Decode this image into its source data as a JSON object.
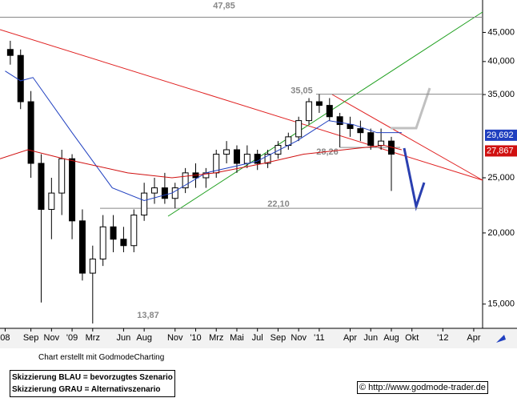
{
  "chart_data": {
    "type": "candlestick",
    "log_scale": true,
    "xlim": [
      5,
      51.86
    ],
    "ylim": [
      13600,
      51300
    ],
    "xticks": [
      {
        "value": 5.5,
        "label": "08"
      },
      {
        "value": 8,
        "label": "Sep"
      },
      {
        "value": 10,
        "label": "Nov"
      },
      {
        "value": 12,
        "label": "'09"
      },
      {
        "value": 14,
        "label": "Mrz"
      },
      {
        "value": 17,
        "label": "Jun"
      },
      {
        "value": 19,
        "label": "Aug"
      },
      {
        "value": 22,
        "label": "Nov"
      },
      {
        "value": 24,
        "label": "'10"
      },
      {
        "value": 26,
        "label": "Mrz"
      },
      {
        "value": 28,
        "label": "Mai"
      },
      {
        "value": 30,
        "label": "Jul"
      },
      {
        "value": 32,
        "label": "Sep"
      },
      {
        "value": 34,
        "label": "Nov"
      },
      {
        "value": 36,
        "label": "'11"
      },
      {
        "value": 39,
        "label": "Apr"
      },
      {
        "value": 41,
        "label": "Jun"
      },
      {
        "value": 43,
        "label": "Aug"
      },
      {
        "value": 45,
        "label": "Okt"
      },
      {
        "value": 48,
        "label": "'12"
      },
      {
        "value": 51,
        "label": "Apr"
      }
    ],
    "yticks": [
      {
        "value": 15000,
        "label": "15,000"
      },
      {
        "value": 20000,
        "label": "20,000"
      },
      {
        "value": 25000,
        "label": "25,000"
      },
      {
        "value": 35000,
        "label": "35,000"
      },
      {
        "value": 40000,
        "label": "40,000"
      },
      {
        "value": 45000,
        "label": "45,000"
      }
    ],
    "x": [
      6,
      7,
      8,
      9,
      10,
      11,
      12,
      13,
      14,
      15,
      16,
      17,
      18,
      19,
      20,
      21,
      22,
      23,
      24,
      25,
      26,
      27,
      28,
      29,
      30,
      31,
      32,
      33,
      34,
      35,
      36,
      37,
      38,
      39,
      40,
      41,
      42,
      43
    ],
    "open": [
      42000,
      41000,
      34000,
      26500,
      22000,
      23500,
      27000,
      21000,
      17000,
      18000,
      20500,
      19500,
      19000,
      21500,
      23500,
      24000,
      23000,
      24000,
      25500,
      25000,
      25500,
      27500,
      28000,
      26500,
      27500,
      26500,
      27500,
      28500,
      29500,
      31500,
      34000,
      33500,
      32000,
      31000,
      30500,
      30000,
      28500,
      29000
    ],
    "high": [
      43500,
      42000,
      35500,
      27500,
      25000,
      28000,
      27500,
      22000,
      19000,
      21500,
      21500,
      20500,
      22000,
      24500,
      25000,
      25500,
      24500,
      26000,
      26500,
      26000,
      28000,
      29000,
      28500,
      28500,
      28000,
      28000,
      29000,
      30000,
      32000,
      34500,
      35050,
      34500,
      32500,
      32000,
      31500,
      30500,
      30500,
      29500
    ],
    "low": [
      39500,
      33000,
      25000,
      15100,
      19500,
      21500,
      19500,
      16500,
      13870,
      17500,
      18500,
      18500,
      18500,
      21000,
      22500,
      22500,
      22100,
      23500,
      24000,
      24000,
      25000,
      26500,
      25500,
      26000,
      25800,
      26000,
      27000,
      28000,
      29000,
      31000,
      32500,
      31500,
      28260,
      29500,
      29000,
      28000,
      28000,
      23700
    ],
    "close": [
      41000,
      34000,
      26500,
      22000,
      23500,
      27000,
      21000,
      17000,
      18000,
      20500,
      19500,
      19000,
      21500,
      23500,
      24000,
      23000,
      24000,
      25500,
      25000,
      25500,
      27500,
      28000,
      26500,
      27500,
      26500,
      27500,
      28500,
      29500,
      31500,
      34000,
      33500,
      32000,
      31000,
      30500,
      30000,
      28500,
      29000,
      27500
    ],
    "candle_color": "#000000",
    "series": [
      {
        "color": "#2040c0",
        "x": [
          5.5,
          7,
          8.2,
          12,
          15.9,
          19,
          21.7,
          25,
          29.9,
          33.8,
          36.9,
          39.3,
          41.6,
          44
        ],
        "values": [
          38500,
          37000,
          37500,
          30000,
          24000,
          22800,
          23500,
          25500,
          26700,
          29000,
          31500,
          31000,
          30000,
          30000
        ]
      },
      {
        "color": "#d01010",
        "x": [
          5,
          7.7,
          11.2,
          17.4,
          21.7,
          25.9,
          30.6,
          34.5,
          38.4,
          42.3,
          44
        ],
        "values": [
          27000,
          28000,
          27000,
          25500,
          25000,
          25500,
          26500,
          27500,
          28000,
          28500,
          28000
        ]
      }
    ],
    "levels": [
      {
        "value": 47850,
        "label": "47,85"
      },
      {
        "value": 35050,
        "label": "35,05"
      },
      {
        "value": 28260,
        "label": "28,26"
      },
      {
        "value": 22100,
        "label": "22,10"
      },
      {
        "value": 13870,
        "label": "13,87"
      }
    ],
    "price_labels": [
      {
        "value": 29692,
        "label": "29,692",
        "color": "#1f3fbf"
      },
      {
        "value": 27867,
        "label": "27,867",
        "color": "#d01010"
      }
    ]
  },
  "credit": "Chart erstellt mit GodmodeCharting",
  "notes": [
    "Skizzierung BLAU = bevorzugtes Szenario",
    "Skizzierung GRAU = Alternativszenario"
  ],
  "url": "© http://www.godmode-trader.de"
}
